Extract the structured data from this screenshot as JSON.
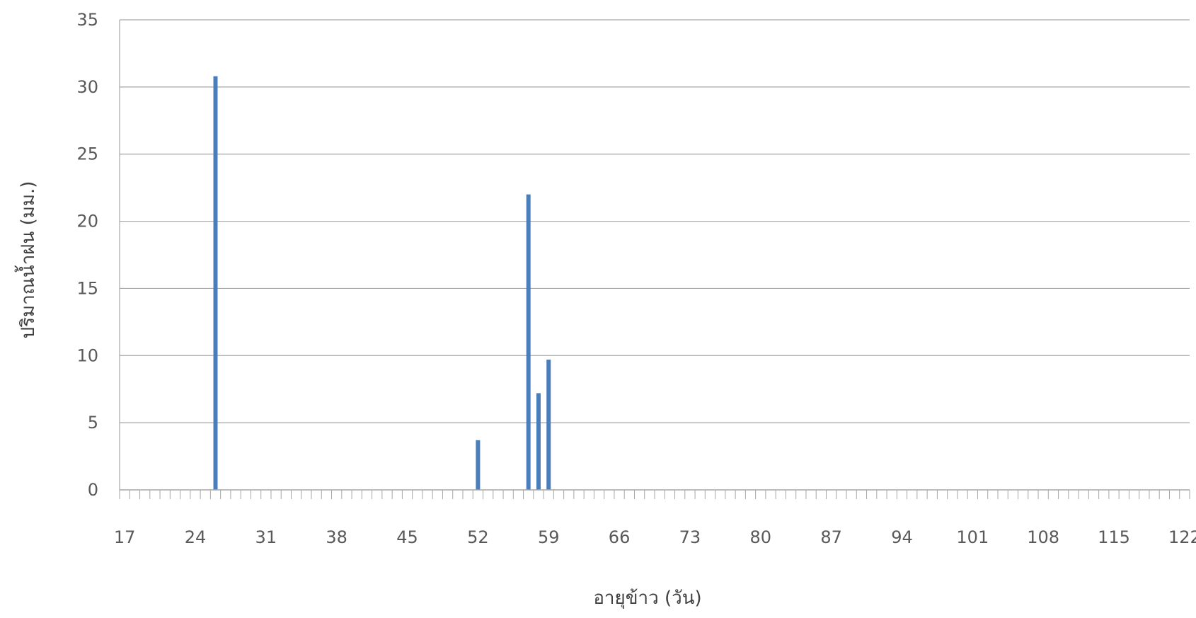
{
  "chart_data": {
    "type": "bar",
    "title": "",
    "xlabel": "อายุข้าว (วัน)",
    "ylabel": "ปริมาณน้ำฝน (มม.)",
    "ylim": [
      0,
      35
    ],
    "y_ticks": [
      "0",
      "5",
      "10",
      "15",
      "20",
      "25",
      "30",
      "35"
    ],
    "x_range": [
      17,
      123
    ],
    "x_tick_labels": [
      "17",
      "24",
      "31",
      "38",
      "45",
      "52",
      "59",
      "66",
      "73",
      "80",
      "87",
      "94",
      "101",
      "108",
      "115",
      "122"
    ],
    "grid": true,
    "legend": "none",
    "series": [
      {
        "color": "#4a7ebb",
        "points": [
          {
            "x": 26,
            "y": 30.8
          },
          {
            "x": 52,
            "y": 3.7
          },
          {
            "x": 57,
            "y": 22.0
          },
          {
            "x": 58,
            "y": 7.2
          },
          {
            "x": 59,
            "y": 9.7
          }
        ]
      }
    ],
    "colors": {
      "bar": "#4a7ebb",
      "grid": "#a6a6a6",
      "axis": "#a6a6a6"
    }
  }
}
